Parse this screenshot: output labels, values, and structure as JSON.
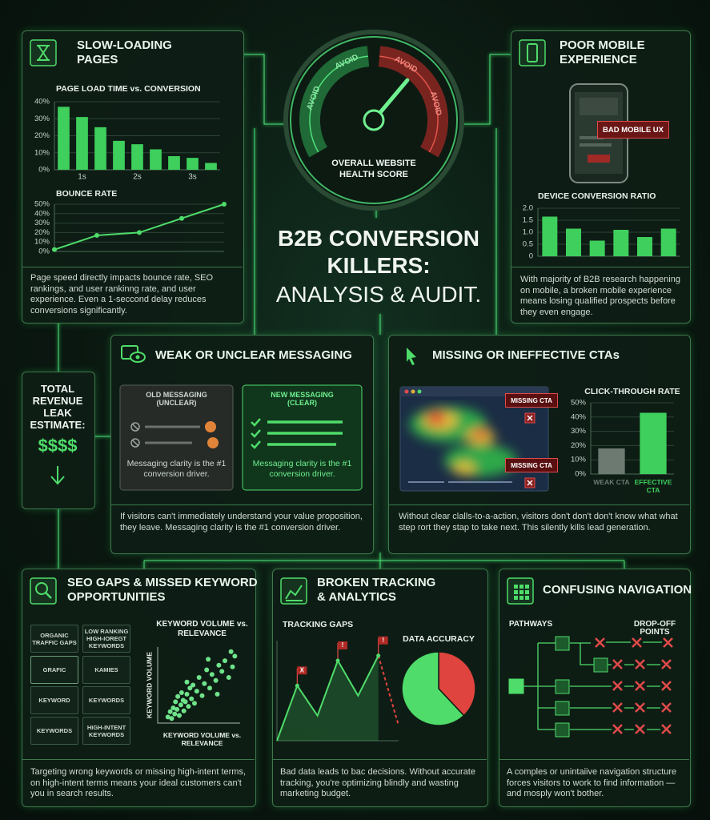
{
  "title": [
    "B2B CONVERSION",
    "KILLERS:",
    "ANALYSIS & AUDIT."
  ],
  "gauge": {
    "labels": [
      "AVOID",
      "AVOID",
      "AVOID",
      "AVOID"
    ],
    "caption": [
      "OVERALL WEBSITE",
      "HEALTH SCORE"
    ]
  },
  "revenue": {
    "label": [
      "TOTAL",
      "REVENUE",
      "LEAK",
      "ESTIMATE:"
    ],
    "value": "$$$$"
  },
  "panels": {
    "slow": {
      "title": [
        "SLOW-LOADING",
        "PAGES"
      ],
      "body": "Page speed directly impacts bounce rate, SEO rankings, and user rankinng rate, and user experience. Even a 1-seccond delay reduces conversions significantly."
    },
    "mobile": {
      "title": [
        "POOR MOBILE",
        "EXPERIENCE"
      ],
      "badge": "BAD MOBILE UX",
      "body": "With majority of B2B research happening on mobile, a broken mobile experience means losing qualified prospects before they even engage."
    },
    "messaging": {
      "title": "WEAK OR UNCLEAR MESSAGING",
      "old": {
        "heading": [
          "OLD MESSAGING",
          "(UNCLEAR)"
        ],
        "note": "Messaging clarity is the #1 conversion driver."
      },
      "new": {
        "heading": [
          "NEW MESSAGING",
          "(CLEAR)"
        ],
        "note": "Messaging clarity is the #1 conversion driver."
      },
      "body": "If visitors can't immediately understand your value proposition, they leave. Messaging clarity is the #1 conversion driver."
    },
    "cta": {
      "title": "MISSING OR INEFFECTIVE CTAs",
      "callouts": [
        "MISSING CTA",
        "MISSING CTA"
      ],
      "body": "Without clear clalls-to-a-action, visitors don't don't don't know what what step rort they stap to take next. This silently kills lead generation."
    },
    "seo": {
      "title": [
        "SEO GAPS & MISSED KEYWORD",
        "OPPORTUNITIES"
      ],
      "tags": [
        "ORGANIC TRAFFIC GAPS",
        "LOW RANKING HIGH-IOREGT KEYWORDS",
        "GRAFIC",
        "KAMIES",
        "KEYWORD",
        "KEYWORDS",
        "KEYWORDS",
        "HIGH-INTENT KEYWORDS"
      ],
      "body": "Targeting wrong keywords or missing high-intent terms, on high-intent terms means your ideal customers can't you in search results."
    },
    "tracking": {
      "title": [
        "BROKEN TRACKING",
        "& ANALYTICS"
      ],
      "body": "Bad data leads to bac decisions. Without accurate tracking, you're optimizing blindly and wasting marketing budget."
    },
    "navigation": {
      "title": "CONFUSING NAVIGATION",
      "labels": [
        "PATHWAYS",
        "DROP-OFF POINTS"
      ],
      "body": "A comples or unintaiive navigation structure forces visitors to work to find information — and mosply won't bother."
    }
  },
  "chart_data": [
    {
      "type": "bar",
      "title": "PAGE LOAD TIME vs. CONVERSION",
      "categories": [
        null,
        "1s",
        null,
        null,
        "2s",
        null,
        null,
        "3s",
        null
      ],
      "values": [
        37,
        31,
        25,
        17,
        15,
        12,
        8,
        7,
        4
      ],
      "color": "#3ecf5c",
      "ylim": [
        0,
        40
      ],
      "yticks": [
        {
          "value": 0,
          "label": "0%"
        },
        {
          "value": 10,
          "label": "10%"
        },
        {
          "value": 20,
          "label": "20%"
        },
        {
          "value": 30,
          "label": "30%"
        },
        {
          "value": 40,
          "label": "40%"
        }
      ],
      "grid": true
    },
    {
      "type": "line",
      "title": "BOUNCE RATE",
      "categories": [
        null,
        null,
        null,
        null,
        null
      ],
      "values": [
        2,
        17,
        20,
        35,
        50
      ],
      "color": "#4fdc6a",
      "markers": true,
      "ylim": [
        0,
        50
      ],
      "yticks": [
        {
          "value": 0,
          "label": "0%"
        },
        {
          "value": 10,
          "label": "10%"
        },
        {
          "value": 20,
          "label": "20%"
        },
        {
          "value": 30,
          "label": "30%"
        },
        {
          "value": 40,
          "label": "40%"
        },
        {
          "value": 50,
          "label": "50%"
        }
      ],
      "grid": true
    },
    {
      "type": "bar",
      "title": "DEVICE CONVERSION RATIO",
      "categories": [
        null,
        null,
        null,
        null,
        null,
        null
      ],
      "values": [
        1.65,
        1.15,
        0.65,
        1.1,
        0.8,
        1.15
      ],
      "color": "#3ecf5c",
      "ylim": [
        0,
        2
      ],
      "yticks": [
        0,
        0.5,
        {
          "value": 1,
          "label": "1.0"
        },
        1.5,
        {
          "value": 2,
          "label": "2.0"
        }
      ],
      "grid": true
    },
    {
      "type": "bar",
      "title": "CLICK-THROUGH RATE",
      "categories": [
        "WEAK CTA",
        "EFFECTIVE CTA"
      ],
      "values": [
        18,
        43
      ],
      "colors": [
        "#6d7a72",
        "#3ecf5c"
      ],
      "ylim": [
        0,
        50
      ],
      "yticks": [
        {
          "value": 0,
          "label": "0%"
        },
        {
          "value": 10,
          "label": "10%"
        },
        {
          "value": 20,
          "label": "20%"
        },
        {
          "value": 30,
          "label": "30%"
        },
        {
          "value": 40,
          "label": "40%"
        },
        {
          "value": 50,
          "label": "50%"
        }
      ],
      "grid": true
    },
    {
      "type": "scatter",
      "title": "KEYWORD VOLUME vs. RELEVANCE",
      "x_label": "KEYWORD VOLUME vs. RELEVANCE",
      "y_label": "KEYWORD VOLUME",
      "x": [
        0.5,
        0.8,
        1,
        1.2,
        1.4,
        1.5,
        1.7,
        1.8,
        2,
        2.2,
        2.3,
        2.5,
        2.6,
        2.8,
        3,
        3.2,
        3.4,
        3.6,
        3.8,
        4,
        4.3,
        4.6,
        5,
        5.3,
        5.6,
        6,
        6.3,
        6.8,
        7.2,
        7.6,
        8,
        8.5,
        9,
        9.3,
        3,
        5.8,
        7,
        8.8
      ],
      "y": [
        0.8,
        1.5,
        0.6,
        2,
        1.2,
        2.8,
        1.8,
        3.5,
        1,
        2.4,
        4,
        3,
        1.6,
        2.8,
        3.8,
        2.2,
        4.6,
        3.2,
        5,
        2.6,
        4.2,
        6,
        3.6,
        5.2,
        7,
        4.6,
        6.4,
        5.6,
        7.6,
        6.8,
        8.2,
        6,
        7.4,
        8.8,
        5.4,
        8.4,
        3.8,
        9.4
      ],
      "color": "#6fe28a",
      "xlim": [
        0,
        10
      ],
      "ylim": [
        0,
        10
      ]
    },
    {
      "type": "line",
      "title": "TRACKING GAPS",
      "categories": [
        null,
        null,
        null,
        null,
        null,
        null,
        null
      ],
      "values": [
        0,
        55,
        25,
        80,
        45,
        85,
        15
      ],
      "color": "#4fdc6a",
      "area": true,
      "dashed_from": 5,
      "dash_color": "#e0443e",
      "annotations": [
        "X",
        "!",
        "!"
      ],
      "ylim": [
        0,
        100
      ]
    },
    {
      "type": "pie",
      "title": "DATA ACCURACY",
      "categories": [
        null,
        null
      ],
      "values": [
        38,
        62
      ],
      "colors": [
        "#e0443e",
        "#4fdc6a"
      ]
    }
  ]
}
